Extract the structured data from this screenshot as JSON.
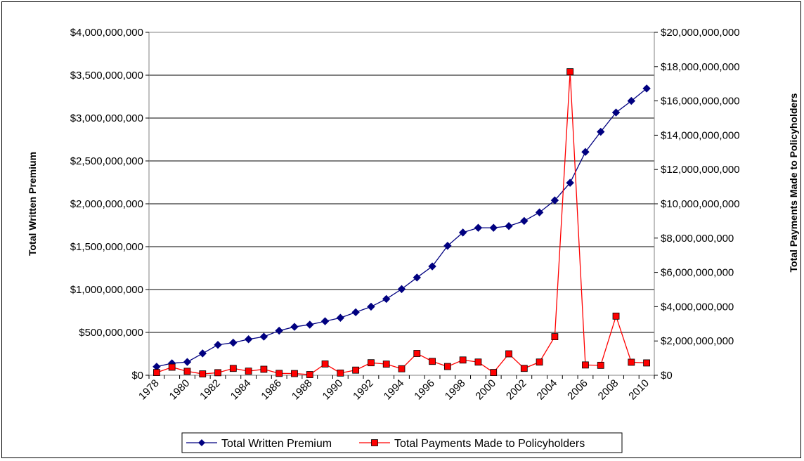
{
  "chart_data": {
    "type": "line",
    "x": [
      1978,
      1979,
      1980,
      1981,
      1982,
      1983,
      1984,
      1985,
      1986,
      1987,
      1988,
      1989,
      1990,
      1991,
      1992,
      1993,
      1994,
      1995,
      1996,
      1997,
      1998,
      1999,
      2000,
      2001,
      2002,
      2003,
      2004,
      2005,
      2006,
      2007,
      2008,
      2009,
      2010
    ],
    "x_tick_labels": [
      "1978",
      "1980",
      "1982",
      "1984",
      "1986",
      "1988",
      "1990",
      "1992",
      "1994",
      "1996",
      "1998",
      "2000",
      "2002",
      "2004",
      "2006",
      "2008",
      "2010"
    ],
    "series": [
      {
        "name": "Total Written Premium",
        "axis": "left",
        "color": "#000080",
        "marker": "diamond",
        "values": [
          100000000,
          140000000,
          155000000,
          255000000,
          355000000,
          380000000,
          420000000,
          450000000,
          520000000,
          565000000,
          590000000,
          630000000,
          670000000,
          735000000,
          800000000,
          890000000,
          1005000000,
          1140000000,
          1270000000,
          1510000000,
          1665000000,
          1720000000,
          1720000000,
          1740000000,
          1800000000,
          1900000000,
          2040000000,
          2245000000,
          2605000000,
          2840000000,
          3065000000,
          3200000000,
          3345000000
        ]
      },
      {
        "name": "Total Payments Made to Policyholders",
        "axis": "right",
        "color": "#ff0000",
        "marker": "square",
        "values": [
          160000000,
          470000000,
          230000000,
          80000000,
          150000000,
          400000000,
          240000000,
          350000000,
          110000000,
          100000000,
          40000000,
          660000000,
          130000000,
          300000000,
          730000000,
          650000000,
          380000000,
          1270000000,
          810000000,
          510000000,
          890000000,
          770000000,
          160000000,
          1250000000,
          400000000,
          770000000,
          2250000000,
          17700000000,
          600000000,
          580000000,
          3450000000,
          760000000,
          720000000
        ]
      }
    ],
    "left_axis": {
      "label": "Total Written Premium",
      "ylim": [
        0,
        4000000000
      ],
      "tick_labels": [
        "$0",
        "$500,000,000",
        "$1,000,000,000",
        "$1,500,000,000",
        "$2,000,000,000",
        "$2,500,000,000",
        "$3,000,000,000",
        "$3,500,000,000",
        "$4,000,000,000"
      ]
    },
    "right_axis": {
      "label": "Total Payments Made to Policyholders",
      "ylim": [
        0,
        20000000000
      ],
      "tick_labels": [
        "$0",
        "$2,000,000,000",
        "$4,000,000,000",
        "$6,000,000,000",
        "$8,000,000,000",
        "$10,000,000,000",
        "$12,000,000,000",
        "$14,000,000,000",
        "$16,000,000,000",
        "$18,000,000,000",
        "$20,000,000,000"
      ]
    },
    "grid": true,
    "legend_position": "bottom"
  }
}
